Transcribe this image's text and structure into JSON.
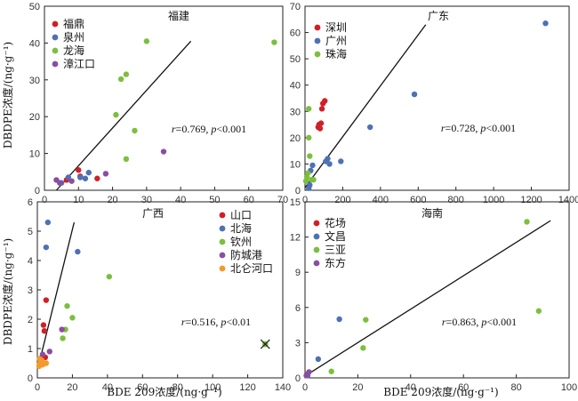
{
  "axis_titles": {
    "y": "DBDPE浓度/(ng·g⁻¹)",
    "x": "BDE 209浓度/(ng·g⁻¹)"
  },
  "colors": {
    "red": "#d21f26",
    "blue": "#4d71b3",
    "green": "#7cbf3e",
    "purple": "#8a4ea0",
    "orange": "#f39a2a"
  },
  "chart_data": [
    {
      "id": "fujian",
      "type": "scatter",
      "title": "福建",
      "xlim": [
        0,
        70
      ],
      "ylim": [
        0,
        50
      ],
      "xticks": [
        0,
        10,
        20,
        30,
        40,
        50,
        60,
        70
      ],
      "yticks": [
        0,
        10,
        20,
        30,
        40,
        50
      ],
      "stat": {
        "r": "0.769",
        "p": "0.001",
        "rel": "<"
      },
      "fit": [
        [
          3.5,
          0
        ],
        [
          43,
          40.5
        ]
      ],
      "legend_position": "top-left",
      "series": [
        {
          "name": "福鼎",
          "color": "#d21f26",
          "points": [
            [
              6.5,
              2.8
            ],
            [
              10,
              5.5
            ],
            [
              10.5,
              3.8
            ],
            [
              15.5,
              3.2
            ]
          ]
        },
        {
          "name": "泉州",
          "color": "#4d71b3",
          "points": [
            [
              5,
              2
            ],
            [
              7,
              3.5
            ],
            [
              12,
              3.2
            ],
            [
              13,
              4.8
            ],
            [
              10.5,
              3.5
            ]
          ]
        },
        {
          "name": "龙海",
          "color": "#7cbf3e",
          "points": [
            [
              30,
              40.5
            ],
            [
              67.5,
              40.2
            ],
            [
              24,
              31.5
            ],
            [
              22.5,
              30.2
            ],
            [
              21,
              20.5
            ],
            [
              26.5,
              16.2
            ],
            [
              24,
              8.5
            ]
          ]
        },
        {
          "name": "漳江口",
          "color": "#8a4ea0",
          "points": [
            [
              3.5,
              2.8
            ],
            [
              4.5,
              2.0
            ],
            [
              8,
              2.5
            ],
            [
              18,
              4.5
            ],
            [
              35,
              10.5
            ]
          ]
        }
      ]
    },
    {
      "id": "guangdong",
      "type": "scatter",
      "title": "广东",
      "xlim": [
        0,
        1400
      ],
      "ylim": [
        0,
        70
      ],
      "xticks": [
        0,
        200,
        400,
        600,
        800,
        1000,
        1200,
        1400
      ],
      "yticks": [
        0,
        10,
        20,
        30,
        40,
        50,
        60,
        70
      ],
      "stat": {
        "r": "0.728",
        "p": "0.001",
        "rel": "<"
      },
      "fit": [
        [
          0,
          1
        ],
        [
          640,
          63
        ]
      ],
      "legend_position": "top-left",
      "series": [
        {
          "name": "深圳",
          "color": "#d21f26",
          "points": [
            [
              75,
              25
            ],
            [
              70,
              24
            ],
            [
              80,
              23.5
            ],
            [
              85,
              25.5
            ],
            [
              95,
              33
            ],
            [
              105,
              34
            ],
            [
              90,
              31
            ]
          ]
        },
        {
          "name": "广州",
          "color": "#4d71b3",
          "points": [
            [
              1275,
              63.5
            ],
            [
              580,
              36.5
            ],
            [
              345,
              24
            ],
            [
              190,
              11
            ],
            [
              120,
              12
            ],
            [
              130,
              10
            ],
            [
              110,
              11
            ],
            [
              40,
              9.5
            ],
            [
              30,
              7.5
            ],
            [
              25,
              2
            ],
            [
              20,
              0.8
            ]
          ]
        },
        {
          "name": "珠海",
          "color": "#7cbf3e",
          "points": [
            [
              20,
              31
            ],
            [
              20,
              20
            ],
            [
              25,
              13
            ],
            [
              15,
              6.5
            ],
            [
              10,
              5
            ],
            [
              5,
              3.5
            ],
            [
              35,
              4
            ],
            [
              45,
              4
            ]
          ]
        }
      ]
    },
    {
      "id": "guangxi",
      "type": "scatter",
      "title": "广西",
      "xlim": [
        0,
        140
      ],
      "ylim": [
        0,
        6
      ],
      "xticks": [
        0,
        20,
        40,
        60,
        80,
        100,
        120,
        140
      ],
      "yticks": [
        0,
        1,
        2,
        3,
        4,
        5,
        6
      ],
      "stat": {
        "r": "0.516",
        "p": "0.01",
        "rel": "<"
      },
      "fit": [
        [
          1,
          0.5
        ],
        [
          21,
          5.3
        ]
      ],
      "legend_position": "top-right",
      "outlier": [
        130,
        1.15
      ],
      "series": [
        {
          "name": "山口",
          "color": "#d21f26",
          "points": [
            [
              5,
              2.65
            ],
            [
              3.5,
              1.8
            ],
            [
              4,
              1.6
            ],
            [
              3,
              0.75
            ],
            [
              4.5,
              0.7
            ]
          ]
        },
        {
          "name": "北海",
          "color": "#4d71b3",
          "points": [
            [
              6,
              5.3
            ],
            [
              5,
              4.45
            ],
            [
              23,
              4.3
            ]
          ]
        },
        {
          "name": "钦州",
          "color": "#7cbf3e",
          "points": [
            [
              41,
              3.45
            ],
            [
              17,
              2.45
            ],
            [
              20,
              2.05
            ],
            [
              16,
              1.65
            ],
            [
              14.5,
              1.35
            ]
          ]
        },
        {
          "name": "防城港",
          "color": "#8a4ea0",
          "points": [
            [
              14,
              1.65
            ],
            [
              7,
              0.9
            ],
            [
              3,
              0.8
            ]
          ]
        },
        {
          "name": "北仑河口",
          "color": "#f39a2a",
          "points": [
            [
              1,
              0.4
            ],
            [
              1.5,
              0.5
            ],
            [
              2,
              0.55
            ],
            [
              2.5,
              0.6
            ],
            [
              1.2,
              0.65
            ],
            [
              3,
              0.45
            ],
            [
              5,
              0.5
            ]
          ]
        }
      ]
    },
    {
      "id": "hainan",
      "type": "scatter",
      "title": "海南",
      "xlim": [
        0,
        100
      ],
      "ylim": [
        0,
        15
      ],
      "xticks": [
        0,
        20,
        40,
        60,
        80,
        100
      ],
      "yticks": [
        0,
        3,
        6,
        9,
        12,
        15
      ],
      "stat": {
        "r": "0.863",
        "p": "0.001",
        "rel": "<"
      },
      "fit": [
        [
          1,
          0.3
        ],
        [
          93,
          13.4
        ]
      ],
      "legend_position": "top-left",
      "series": [
        {
          "name": "花场",
          "color": "#d21f26",
          "points": [
            [
              0.8,
              0.3
            ]
          ]
        },
        {
          "name": "文昌",
          "color": "#4d71b3",
          "points": [
            [
              13,
              5
            ],
            [
              5,
              1.6
            ],
            [
              1,
              0.2
            ]
          ]
        },
        {
          "name": "三亚",
          "color": "#7cbf3e",
          "points": [
            [
              84,
              13.3
            ],
            [
              88.5,
              5.7
            ],
            [
              23,
              4.95
            ],
            [
              22,
              2.55
            ],
            [
              10,
              0.55
            ]
          ]
        },
        {
          "name": "东方",
          "color": "#8a4ea0",
          "points": [
            [
              1.5,
              0.5
            ],
            [
              0.5,
              0.2
            ]
          ]
        }
      ]
    }
  ]
}
